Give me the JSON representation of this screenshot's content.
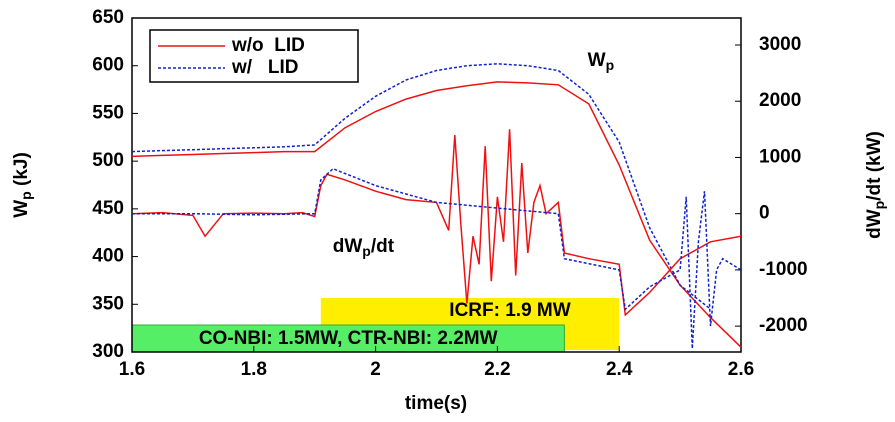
{
  "chart_data": {
    "type": "line",
    "x_label": "time(s)",
    "y_label": [
      "W",
      "p",
      " (kJ)"
    ],
    "y2_label": [
      "dW",
      "p",
      "/dt (kW)"
    ],
    "xlim": [
      1.6,
      2.6
    ],
    "xticks": [
      1.6,
      1.8,
      2,
      2.2,
      2.4,
      2.6
    ],
    "ylim": [
      300,
      650
    ],
    "yticks": [
      300,
      350,
      400,
      450,
      500,
      550,
      600,
      650
    ],
    "y2lim": [
      -2460,
      3480
    ],
    "y2ticks": [
      -2000,
      -1000,
      0,
      1000,
      2000,
      3000
    ],
    "legend": "top-left",
    "annotations": [
      {
        "text": "W",
        "sub": "p",
        "x": 2.37,
        "y": 605
      },
      {
        "text": "dW",
        "sub": "p",
        "tail": "/dt",
        "x": 1.98,
        "y": 410
      }
    ],
    "spans": [
      {
        "text": "ICRF: 1.9 MW",
        "span": [
          1.91,
          2.4
        ],
        "color": "#ffee00"
      },
      {
        "text": "CO-NBI: 1.5MW, CTR-NBI: 2.2MW",
        "span": [
          1.6,
          2.31
        ],
        "color": "#55ee66"
      }
    ],
    "series": [
      {
        "name": "w/o  LID",
        "color": "#ee1111",
        "line_style": "solid",
        "x": [
          1.6,
          1.65,
          1.7,
          1.75,
          1.8,
          1.85,
          1.9,
          1.95,
          2.0,
          2.05,
          2.1,
          2.15,
          2.2,
          2.25,
          2.3,
          2.35,
          2.4,
          2.45,
          2.5,
          2.55,
          2.6
        ],
        "values": [
          505,
          506,
          507,
          508,
          509,
          510,
          510,
          535,
          552,
          565,
          574,
          579,
          583,
          582,
          580,
          560,
          496,
          417,
          370,
          336,
          305
        ]
      },
      {
        "name": "w/   LID",
        "color": "#1122cc",
        "line_style": "dashed",
        "x": [
          1.6,
          1.65,
          1.7,
          1.75,
          1.8,
          1.85,
          1.9,
          1.95,
          2.0,
          2.05,
          2.1,
          2.15,
          2.2,
          2.25,
          2.3,
          2.35,
          2.4,
          2.45,
          2.5,
          2.55
        ],
        "values": [
          510,
          511,
          512,
          513,
          514,
          515,
          517,
          545,
          568,
          585,
          595,
          600,
          602,
          600,
          595,
          570,
          520,
          430,
          370,
          345
        ]
      },
      {
        "color": "#ee1111",
        "line_style": "solid",
        "axis": "y2",
        "x": [
          1.6,
          1.65,
          1.7,
          1.72,
          1.75,
          1.8,
          1.85,
          1.88,
          1.9,
          1.91,
          1.92,
          1.95,
          2.0,
          2.05,
          2.1,
          2.12,
          2.13,
          2.14,
          2.15,
          2.16,
          2.17,
          2.18,
          2.19,
          2.2,
          2.21,
          2.22,
          2.23,
          2.24,
          2.25,
          2.26,
          2.27,
          2.28,
          2.3,
          2.31,
          2.35,
          2.4,
          2.41,
          2.45,
          2.5,
          2.55,
          2.6
        ],
        "values": [
          0,
          20,
          -30,
          -400,
          0,
          10,
          0,
          20,
          -50,
          500,
          700,
          600,
          400,
          250,
          200,
          -300,
          1400,
          -200,
          -1600,
          -400,
          -900,
          1200,
          -1200,
          300,
          -500,
          1500,
          -1100,
          900,
          -700,
          200,
          500,
          0,
          200,
          -700,
          -800,
          -900,
          -1800,
          -1400,
          -800,
          -500,
          -400
        ]
      },
      {
        "color": "#1122cc",
        "line_style": "dashed",
        "axis": "y2",
        "x": [
          1.6,
          1.7,
          1.8,
          1.9,
          1.91,
          1.93,
          2.0,
          2.1,
          2.2,
          2.3,
          2.31,
          2.4,
          2.41,
          2.45,
          2.5,
          2.51,
          2.52,
          2.53,
          2.54,
          2.55,
          2.56,
          2.57,
          2.6
        ],
        "values": [
          0,
          0,
          -20,
          0,
          600,
          800,
          500,
          200,
          100,
          0,
          -800,
          -1000,
          -1700,
          -1300,
          -1000,
          300,
          -2400,
          -500,
          400,
          -2000,
          -1000,
          -800,
          -1000
        ]
      }
    ]
  }
}
